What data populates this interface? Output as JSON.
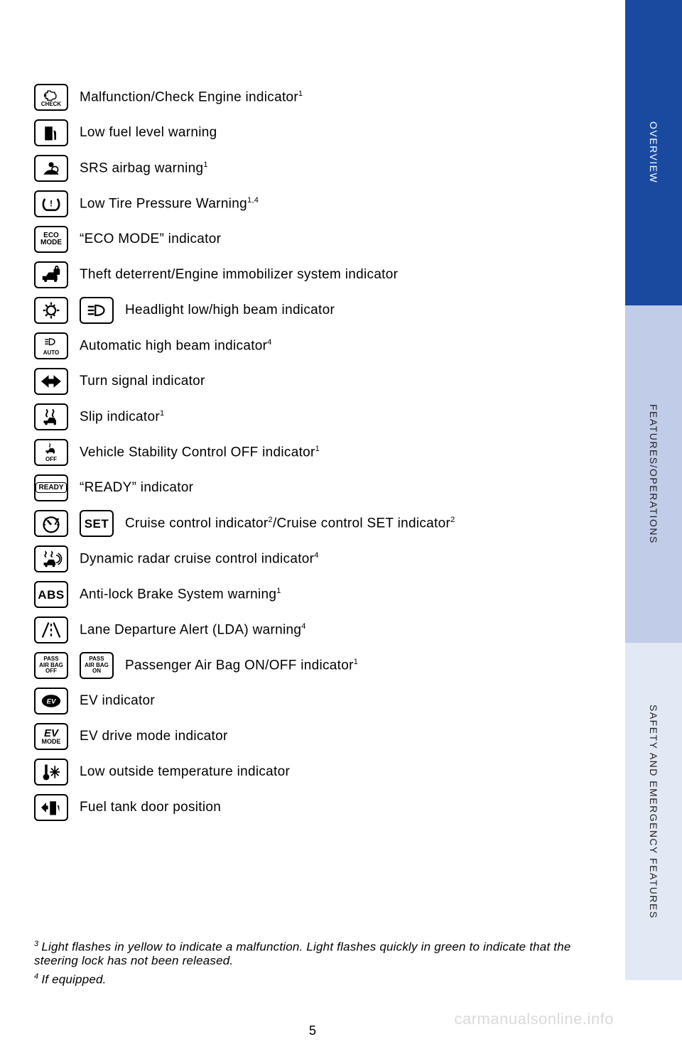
{
  "page_number": "5",
  "watermark": "carmanualsonline.info",
  "tabs": [
    {
      "label": "OVERVIEW",
      "bg": "#1a4aa0",
      "color": "#ffffff"
    },
    {
      "label": "FEATURES/OPERATIONS",
      "bg": "#c0cce8",
      "color": "#222222"
    },
    {
      "label": "SAFETY AND EMERGENCY FEATURES",
      "bg": "#e3e8f5",
      "color": "#222222"
    }
  ],
  "indicators": [
    {
      "icons": [
        {
          "type": "svg",
          "name": "check-engine-icon",
          "sub": "CHECK"
        }
      ],
      "text": "Malfunction/Check Engine indicator",
      "sup": "1"
    },
    {
      "icons": [
        {
          "type": "svg",
          "name": "fuel-pump-icon"
        }
      ],
      "text": "Low fuel level warning",
      "sup": ""
    },
    {
      "icons": [
        {
          "type": "svg",
          "name": "airbag-icon"
        }
      ],
      "text": "SRS airbag warning",
      "sup": "1"
    },
    {
      "icons": [
        {
          "type": "svg",
          "name": "tire-pressure-icon"
        }
      ],
      "text": "Low Tire Pressure Warning",
      "sup": "1,4"
    },
    {
      "icons": [
        {
          "type": "text",
          "value": "ECO\nMODE",
          "cls": "small"
        }
      ],
      "text": "“ECO MODE” indicator",
      "sup": ""
    },
    {
      "icons": [
        {
          "type": "svg",
          "name": "theft-deterrent-icon"
        }
      ],
      "text": "Theft deterrent/Engine immobilizer system indicator",
      "sup": ""
    },
    {
      "icons": [
        {
          "type": "svg",
          "name": "headlight-on-icon"
        },
        {
          "type": "svg",
          "name": "high-beam-icon"
        }
      ],
      "text": "Headlight low/high beam indicator",
      "sup": ""
    },
    {
      "icons": [
        {
          "type": "svg",
          "name": "auto-high-beam-icon",
          "sub": "AUTO"
        }
      ],
      "text": "Automatic high beam indicator",
      "sup": "4"
    },
    {
      "icons": [
        {
          "type": "svg",
          "name": "turn-signal-icon"
        }
      ],
      "text": "Turn signal indicator",
      "sup": ""
    },
    {
      "icons": [
        {
          "type": "svg",
          "name": "slip-icon"
        }
      ],
      "text": "Slip indicator",
      "sup": "1"
    },
    {
      "icons": [
        {
          "type": "svg",
          "name": "vsc-off-icon",
          "sub": "OFF"
        }
      ],
      "text": "Vehicle Stability Control OFF indicator",
      "sup": "1"
    },
    {
      "icons": [
        {
          "type": "text",
          "value": "READY",
          "cls": "small",
          "boxed": true
        }
      ],
      "text": "“READY” indicator",
      "sup": ""
    },
    {
      "icons": [
        {
          "type": "svg",
          "name": "cruise-gauge-icon"
        },
        {
          "type": "text",
          "value": "SET",
          "cls": "big"
        }
      ],
      "text": "Cruise control indicator",
      "sup": "2",
      "text2": "/Cruise control SET indicator",
      "sup2": "2"
    },
    {
      "icons": [
        {
          "type": "svg",
          "name": "radar-cruise-icon"
        }
      ],
      "text": "Dynamic radar cruise control indicator",
      "sup": "4"
    },
    {
      "icons": [
        {
          "type": "text",
          "value": "ABS",
          "cls": "big"
        }
      ],
      "text": "Anti-lock Brake System warning",
      "sup": "1"
    },
    {
      "icons": [
        {
          "type": "svg",
          "name": "lane-departure-icon"
        }
      ],
      "text": "Lane Departure Alert (LDA) warning",
      "sup": "4"
    },
    {
      "icons": [
        {
          "type": "text",
          "value": "PASS\nAIR BAG\nOFF",
          "cls": "xsmall"
        },
        {
          "type": "text",
          "value": "PASS\nAIR BAG\nON",
          "cls": "xsmall"
        }
      ],
      "text": "Passenger Air Bag ON/OFF indicator",
      "sup": "1"
    },
    {
      "icons": [
        {
          "type": "svg",
          "name": "ev-badge-icon"
        }
      ],
      "text": "EV indicator",
      "sup": ""
    },
    {
      "icons": [
        {
          "type": "text",
          "value": "EV\nMODE",
          "cls": "small",
          "italicTop": true
        }
      ],
      "text": "EV drive mode indicator",
      "sup": ""
    },
    {
      "icons": [
        {
          "type": "svg",
          "name": "snowflake-thermo-icon"
        }
      ],
      "text": "Low outside temperature indicator",
      "sup": ""
    },
    {
      "icons": [
        {
          "type": "svg",
          "name": "fuel-door-icon"
        }
      ],
      "text": "Fuel tank door position",
      "sup": ""
    }
  ],
  "footnotes": [
    {
      "n": "3",
      "text": "Light flashes in yellow to indicate a malfunction. Light flashes quickly in green to indicate that the steering lock has not been released."
    },
    {
      "n": "4",
      "text": "If equipped."
    }
  ],
  "colors": {
    "tab_active": "#1a4aa0",
    "tab_mid": "#c0cce8",
    "tab_light": "#e3e8f5",
    "text": "#000000",
    "bg": "#ffffff"
  }
}
